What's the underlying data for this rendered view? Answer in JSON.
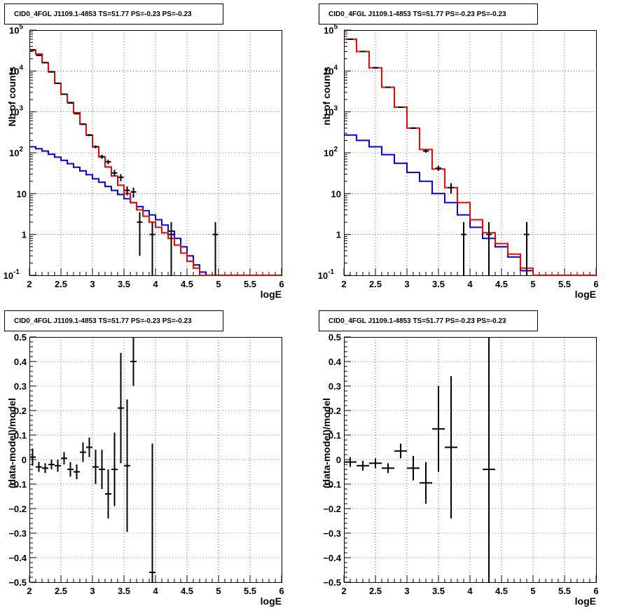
{
  "panels": [
    {
      "title": "CID0_4FGL J1109.1-4853 TS=51.77 PS=-0.23 PS=-0.23",
      "xlabel": "logE",
      "ylabel": "Nb of counts",
      "chart_data": {
        "type": "line",
        "title": "CID0_4FGL J1109.1-4853 TS=51.77 PS=-0.23 PS=-0.23",
        "xlabel": "logE",
        "ylabel": "Nb of counts",
        "yscale": "log",
        "xlim": [
          2,
          6
        ],
        "ylim": [
          0.1,
          100000
        ],
        "grid": true,
        "x_ticks": [
          "2",
          "2.5",
          "3",
          "3.5",
          "4",
          "4.5",
          "5",
          "5.5",
          "6"
        ],
        "y_ticks": [
          {
            "v": 0.1,
            "base": "10",
            "exp": "-1"
          },
          {
            "v": 1,
            "base": "1",
            "exp": ""
          },
          {
            "v": 10,
            "base": "10",
            "exp": ""
          },
          {
            "v": 100,
            "base": "10",
            "exp": "2"
          },
          {
            "v": 1000,
            "base": "10",
            "exp": "3"
          },
          {
            "v": 10000,
            "base": "10",
            "exp": "4"
          },
          {
            "v": 100000,
            "base": "10",
            "exp": "5"
          }
        ],
        "bin_edges": [
          2,
          2.1,
          2.2,
          2.3,
          2.4,
          2.5,
          2.6,
          2.7,
          2.8,
          2.9,
          3,
          3.1,
          3.2,
          3.3,
          3.4,
          3.5,
          3.6,
          3.7,
          3.8,
          3.9,
          4,
          4.1,
          4.2,
          4.3,
          4.4,
          4.5,
          4.6,
          4.7,
          4.8,
          4.9,
          5,
          5.1,
          5.2,
          5.3,
          5.4,
          5.5,
          5.6,
          5.7,
          5.8,
          5.9,
          6
        ],
        "series": [
          {
            "color": "#0000ff",
            "values": [
              140,
              125,
              110,
              92,
              78,
              65,
              54,
              44,
              36,
              29,
              23,
              19,
              15,
              12,
              9.5,
              7.5,
              6.0,
              4.8,
              3.8,
              3.0,
              2.3,
              1.7,
              1.2,
              0.8,
              0.5,
              0.3,
              0.18,
              0.12,
              0.1,
              0.1,
              0.1,
              0.1,
              0.1,
              0.1,
              0.1,
              0.1,
              0.1,
              0.1,
              0.1,
              0.1
            ]
          },
          {
            "color": "#ff0000",
            "values": [
              32000,
              26000,
              16000,
              9500,
              5000,
              2700,
              1700,
              950,
              500,
              270,
              140,
              80,
              45,
              27,
              16,
              10,
              6.0,
              4.0,
              2.8,
              2.0,
              1.5,
              1.1,
              0.8,
              0.55,
              0.35,
              0.22,
              0.15,
              0.1,
              0.1,
              0.1,
              0.1,
              0.1,
              0.1,
              0.1,
              0.1,
              0.1,
              0.1,
              0.1,
              0.1,
              0.1
            ]
          }
        ],
        "points": [
          {
            "x": 2.05,
            "y": 33000,
            "lo": 32800,
            "hi": 33200
          },
          {
            "x": 2.15,
            "y": 24000,
            "lo": 23800,
            "hi": 24200
          },
          {
            "x": 2.25,
            "y": 16000,
            "lo": 15800,
            "hi": 16200
          },
          {
            "x": 2.35,
            "y": 9500,
            "lo": 9400,
            "hi": 9600
          },
          {
            "x": 2.45,
            "y": 5000,
            "lo": 4930,
            "hi": 5070
          },
          {
            "x": 2.55,
            "y": 2700,
            "lo": 2650,
            "hi": 2750
          },
          {
            "x": 2.65,
            "y": 1650,
            "lo": 1610,
            "hi": 1690
          },
          {
            "x": 2.75,
            "y": 900,
            "lo": 870,
            "hi": 930
          },
          {
            "x": 2.85,
            "y": 500,
            "lo": 478,
            "hi": 522
          },
          {
            "x": 2.95,
            "y": 270,
            "lo": 254,
            "hi": 286
          },
          {
            "x": 3.05,
            "y": 140,
            "lo": 128,
            "hi": 152
          },
          {
            "x": 3.15,
            "y": 80,
            "lo": 71,
            "hi": 89
          },
          {
            "x": 3.25,
            "y": 60,
            "lo": 52,
            "hi": 68
          },
          {
            "x": 3.35,
            "y": 32,
            "lo": 27,
            "hi": 38
          },
          {
            "x": 3.45,
            "y": 25,
            "lo": 20,
            "hi": 30
          },
          {
            "x": 3.55,
            "y": 12,
            "lo": 9,
            "hi": 15
          },
          {
            "x": 3.65,
            "y": 11,
            "lo": 8,
            "hi": 14
          },
          {
            "x": 3.75,
            "y": 2,
            "lo": 0.3,
            "hi": 3.5
          },
          {
            "x": 3.95,
            "y": 1,
            "lo": 0.1,
            "hi": 2
          },
          {
            "x": 4.25,
            "y": 1,
            "lo": 0.1,
            "hi": 2
          },
          {
            "x": 4.95,
            "y": 1,
            "lo": 0.1,
            "hi": 2
          }
        ]
      }
    },
    {
      "title": "CID0_4FGL J1109.1-4853 TS=51.77 PS=-0.23 PS=-0.23",
      "xlabel": "logE",
      "ylabel": "nb of counts",
      "chart_data": {
        "type": "line",
        "title": "CID0_4FGL J1109.1-4853 TS=51.77 PS=-0.23 PS=-0.23",
        "xlabel": "logE",
        "ylabel": "nb of counts",
        "yscale": "log",
        "xlim": [
          2,
          6
        ],
        "ylim": [
          0.1,
          100000
        ],
        "grid": true,
        "x_ticks": [
          "2",
          "2.5",
          "3",
          "3.5",
          "4",
          "4.5",
          "5",
          "5.5",
          "6"
        ],
        "y_ticks": [
          {
            "v": 0.1,
            "base": "10",
            "exp": "-1"
          },
          {
            "v": 1,
            "base": "1",
            "exp": ""
          },
          {
            "v": 10,
            "base": "10",
            "exp": ""
          },
          {
            "v": 100,
            "base": "10",
            "exp": "2"
          },
          {
            "v": 1000,
            "base": "10",
            "exp": "3"
          },
          {
            "v": 10000,
            "base": "10",
            "exp": "4"
          },
          {
            "v": 100000,
            "base": "10",
            "exp": "5"
          }
        ],
        "bin_edges": [
          2,
          2.2,
          2.4,
          2.6,
          2.8,
          3,
          3.2,
          3.4,
          3.6,
          3.8,
          4,
          4.2,
          4.4,
          4.6,
          4.8,
          5,
          5.2,
          5.4,
          5.6,
          5.8,
          6
        ],
        "series": [
          {
            "color": "#0000ff",
            "values": [
              270,
              200,
              140,
              90,
              55,
              33,
              20,
              10,
              6,
              3,
              1.5,
              0.8,
              0.5,
              0.28,
              0.13,
              0.1,
              0.1,
              0.1,
              0.1,
              0.1
            ]
          },
          {
            "color": "#ff0000",
            "values": [
              60000,
              30000,
              12000,
              4000,
              1300,
              400,
              120,
              40,
              14,
              6,
              2.3,
              1.1,
              0.6,
              0.33,
              0.15,
              0.1,
              0.1,
              0.1,
              0.1,
              0.1
            ]
          }
        ],
        "points": [
          {
            "x": 2.1,
            "y": 60000,
            "lo": 59700,
            "hi": 60300
          },
          {
            "x": 2.3,
            "y": 30000,
            "lo": 29800,
            "hi": 30200
          },
          {
            "x": 2.5,
            "y": 12000,
            "lo": 11900,
            "hi": 12100
          },
          {
            "x": 2.7,
            "y": 4000,
            "lo": 3940,
            "hi": 4060
          },
          {
            "x": 2.9,
            "y": 1300,
            "lo": 1260,
            "hi": 1340
          },
          {
            "x": 3.1,
            "y": 400,
            "lo": 380,
            "hi": 420
          },
          {
            "x": 3.3,
            "y": 110,
            "lo": 100,
            "hi": 121
          },
          {
            "x": 3.5,
            "y": 42,
            "lo": 36,
            "hi": 48
          },
          {
            "x": 3.7,
            "y": 14,
            "lo": 10,
            "hi": 18
          },
          {
            "x": 3.9,
            "y": 1,
            "lo": 0.1,
            "hi": 2
          },
          {
            "x": 4.3,
            "y": 1,
            "lo": 0.1,
            "hi": 2
          },
          {
            "x": 4.9,
            "y": 1,
            "lo": 0.1,
            "hi": 2
          }
        ]
      }
    },
    {
      "title": "CID0_4FGL J1109.1-4853 TS=51.77 PS=-0.23 PS=-0.23",
      "xlabel": "logE",
      "ylabel": "(data-model)/model",
      "chart_data": {
        "type": "scatter",
        "title": "CID0_4FGL J1109.1-4853 TS=51.77 PS=-0.23 PS=-0.23",
        "xlabel": "logE",
        "ylabel": "(data-model)/model",
        "yscale": "linear",
        "xlim": [
          2,
          6
        ],
        "ylim": [
          -0.5,
          0.5
        ],
        "grid": true,
        "x_ticks": [
          "2",
          "2.5",
          "3",
          "3.5",
          "4",
          "4.5",
          "5",
          "5.5",
          "6"
        ],
        "y_ticks": [
          {
            "v": -0.5,
            "label": "−0.5"
          },
          {
            "v": -0.4,
            "label": "−0.4"
          },
          {
            "v": -0.3,
            "label": "−0.3"
          },
          {
            "v": -0.2,
            "label": "−0.2"
          },
          {
            "v": -0.1,
            "label": "−0.1"
          },
          {
            "v": 0,
            "label": "0"
          },
          {
            "v": 0.1,
            "label": "0.1"
          },
          {
            "v": 0.2,
            "label": "0.2"
          },
          {
            "v": 0.3,
            "label": "0.3"
          },
          {
            "v": 0.4,
            "label": "0.4"
          },
          {
            "v": 0.5,
            "label": "0.5"
          }
        ],
        "xerr": 0.05,
        "points": [
          {
            "x": 2.05,
            "y": 0.01,
            "err": 0.035
          },
          {
            "x": 2.15,
            "y": -0.03,
            "err": 0.02
          },
          {
            "x": 2.25,
            "y": -0.035,
            "err": 0.02
          },
          {
            "x": 2.35,
            "y": -0.02,
            "err": 0.02
          },
          {
            "x": 2.45,
            "y": -0.025,
            "err": 0.025
          },
          {
            "x": 2.55,
            "y": 0.005,
            "err": 0.025
          },
          {
            "x": 2.65,
            "y": -0.04,
            "err": 0.03
          },
          {
            "x": 2.75,
            "y": -0.05,
            "err": 0.03
          },
          {
            "x": 2.85,
            "y": 0.03,
            "err": 0.04
          },
          {
            "x": 2.95,
            "y": 0.05,
            "err": 0.04
          },
          {
            "x": 3.05,
            "y": -0.03,
            "err": 0.07
          },
          {
            "x": 3.15,
            "y": -0.04,
            "err": 0.08
          },
          {
            "x": 3.25,
            "y": -0.14,
            "err": 0.1
          },
          {
            "x": 3.35,
            "y": -0.04,
            "err": 0.15
          },
          {
            "x": 3.45,
            "y": 0.21,
            "err": 0.225
          },
          {
            "x": 3.55,
            "y": -0.025,
            "err": 0.27
          },
          {
            "x": 3.65,
            "y": 0.4,
            "err": 0.1
          },
          {
            "x": 3.95,
            "y": -0.46,
            "err": 0.525
          }
        ]
      }
    },
    {
      "title": "CID0_4FGL J1109.1-4853 TS=51.77 PS=-0.23 PS=-0.23",
      "xlabel": "logE",
      "ylabel": "(data-model)/model",
      "chart_data": {
        "type": "scatter",
        "title": "CID0_4FGL J1109.1-4853 TS=51.77 PS=-0.23 PS=-0.23",
        "xlabel": "logE",
        "ylabel": "(data-model)/model",
        "yscale": "linear",
        "xlim": [
          2,
          6
        ],
        "ylim": [
          -0.5,
          0.5
        ],
        "grid": true,
        "x_ticks": [
          "2",
          "2.5",
          "3",
          "3.5",
          "4",
          "4.5",
          "5",
          "5.5",
          "6"
        ],
        "y_ticks": [
          {
            "v": -0.5,
            "label": "−0.5"
          },
          {
            "v": -0.4,
            "label": "−0.4"
          },
          {
            "v": -0.3,
            "label": "−0.3"
          },
          {
            "v": -0.2,
            "label": "−0.2"
          },
          {
            "v": -0.1,
            "label": "−0.1"
          },
          {
            "v": 0,
            "label": "0"
          },
          {
            "v": 0.1,
            "label": "0.1"
          },
          {
            "v": 0.2,
            "label": "0.2"
          },
          {
            "v": 0.3,
            "label": "0.3"
          },
          {
            "v": 0.4,
            "label": "0.4"
          },
          {
            "v": 0.5,
            "label": "0.5"
          }
        ],
        "xerr": 0.1,
        "points": [
          {
            "x": 2.1,
            "y": -0.01,
            "err": 0.02
          },
          {
            "x": 2.3,
            "y": -0.025,
            "err": 0.02
          },
          {
            "x": 2.5,
            "y": -0.015,
            "err": 0.02
          },
          {
            "x": 2.7,
            "y": -0.035,
            "err": 0.02
          },
          {
            "x": 2.9,
            "y": 0.035,
            "err": 0.03
          },
          {
            "x": 3.1,
            "y": -0.035,
            "err": 0.05
          },
          {
            "x": 3.3,
            "y": -0.095,
            "err": 0.085
          },
          {
            "x": 3.5,
            "y": 0.125,
            "err": 0.175
          },
          {
            "x": 3.7,
            "y": 0.05,
            "err": 0.29
          },
          {
            "x": 4.3,
            "y": -0.04,
            "err": 0.6
          }
        ]
      }
    }
  ]
}
